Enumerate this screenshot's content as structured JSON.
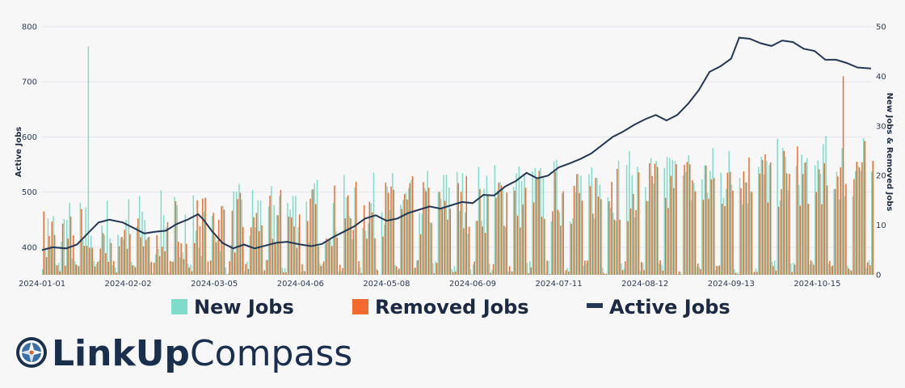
{
  "brand": {
    "name_bold": "LinkUp",
    "name_light": "Compass"
  },
  "colors": {
    "new": "#7fdcc9",
    "removed": "#f26a2e",
    "active": "#243754",
    "grid": "#e3e6ee"
  },
  "chart_data": {
    "type": "bar+line",
    "xlabel": "",
    "ylabel_left": "Active Jobs",
    "ylabel_right": "New Jobs & Removed Jobs",
    "ylim_left": [
      350,
      800
    ],
    "ylim_right": [
      0,
      50
    ],
    "yticks_left": [
      400,
      500,
      600,
      700,
      800
    ],
    "yticks_right": [
      0,
      10,
      20,
      30,
      40,
      50
    ],
    "x_ticks": [
      "2024-01-01",
      "2024-02-02",
      "2024-03-05",
      "2024-04-06",
      "2024-05-08",
      "2024-06-09",
      "2024-07-11",
      "2024-08-12",
      "2024-09-13",
      "2024-10-15"
    ],
    "x_start": "2024-01-01",
    "x_end": "2024-11-04",
    "grid": true,
    "legend_position": "bottom",
    "series": [
      {
        "name": "New Jobs",
        "kind": "bar",
        "axis": "right"
      },
      {
        "name": "Removed Jobs",
        "kind": "bar",
        "axis": "right"
      },
      {
        "name": "Active Jobs",
        "kind": "line",
        "axis": "left",
        "points": [
          [
            "2024-01-01",
            395
          ],
          [
            "2024-01-05",
            400
          ],
          [
            "2024-01-10",
            398
          ],
          [
            "2024-01-14",
            405
          ],
          [
            "2024-01-18",
            425
          ],
          [
            "2024-01-22",
            445
          ],
          [
            "2024-01-26",
            450
          ],
          [
            "2024-01-31",
            445
          ],
          [
            "2024-02-04",
            435
          ],
          [
            "2024-02-08",
            425
          ],
          [
            "2024-02-12",
            428
          ],
          [
            "2024-02-16",
            430
          ],
          [
            "2024-02-20",
            442
          ],
          [
            "2024-02-24",
            450
          ],
          [
            "2024-02-28",
            460
          ],
          [
            "2024-03-01",
            450
          ],
          [
            "2024-03-04",
            430
          ],
          [
            "2024-03-08",
            408
          ],
          [
            "2024-03-12",
            398
          ],
          [
            "2024-03-16",
            405
          ],
          [
            "2024-03-20",
            398
          ],
          [
            "2024-03-24",
            403
          ],
          [
            "2024-03-28",
            408
          ],
          [
            "2024-04-01",
            410
          ],
          [
            "2024-04-06",
            405
          ],
          [
            "2024-04-10",
            402
          ],
          [
            "2024-04-14",
            406
          ],
          [
            "2024-04-18",
            418
          ],
          [
            "2024-04-22",
            428
          ],
          [
            "2024-04-26",
            438
          ],
          [
            "2024-04-30",
            452
          ],
          [
            "2024-05-04",
            458
          ],
          [
            "2024-05-08",
            448
          ],
          [
            "2024-05-12",
            452
          ],
          [
            "2024-05-16",
            462
          ],
          [
            "2024-05-20",
            468
          ],
          [
            "2024-05-24",
            474
          ],
          [
            "2024-05-28",
            470
          ],
          [
            "2024-06-01",
            476
          ],
          [
            "2024-06-05",
            482
          ],
          [
            "2024-06-09",
            480
          ],
          [
            "2024-06-13",
            495
          ],
          [
            "2024-06-17",
            494
          ],
          [
            "2024-06-21",
            510
          ],
          [
            "2024-06-25",
            520
          ],
          [
            "2024-06-29",
            535
          ],
          [
            "2024-07-03",
            525
          ],
          [
            "2024-07-07",
            530
          ],
          [
            "2024-07-11",
            545
          ],
          [
            "2024-07-15",
            552
          ],
          [
            "2024-07-19",
            560
          ],
          [
            "2024-07-23",
            570
          ],
          [
            "2024-07-27",
            585
          ],
          [
            "2024-07-31",
            600
          ],
          [
            "2024-08-04",
            610
          ],
          [
            "2024-08-08",
            622
          ],
          [
            "2024-08-12",
            632
          ],
          [
            "2024-08-16",
            640
          ],
          [
            "2024-08-20",
            630
          ],
          [
            "2024-08-24",
            640
          ],
          [
            "2024-08-28",
            660
          ],
          [
            "2024-09-01",
            685
          ],
          [
            "2024-09-05",
            718
          ],
          [
            "2024-09-09",
            728
          ],
          [
            "2024-09-13",
            742
          ],
          [
            "2024-09-16",
            780
          ],
          [
            "2024-09-20",
            778
          ],
          [
            "2024-09-24",
            770
          ],
          [
            "2024-09-28",
            765
          ],
          [
            "2024-10-02",
            775
          ],
          [
            "2024-10-06",
            772
          ],
          [
            "2024-10-10",
            760
          ],
          [
            "2024-10-14",
            756
          ],
          [
            "2024-10-18",
            740
          ],
          [
            "2024-10-22",
            740
          ],
          [
            "2024-10-26",
            734
          ],
          [
            "2024-10-30",
            726
          ],
          [
            "2024-11-04",
            724
          ]
        ]
      }
    ]
  }
}
